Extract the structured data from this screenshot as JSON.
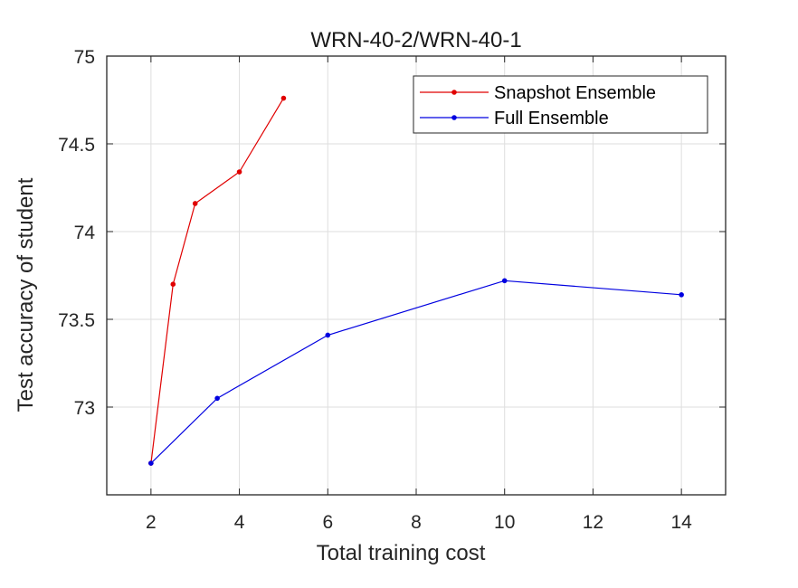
{
  "chart_data": {
    "type": "line",
    "title": "WRN-40-2/WRN-40-1",
    "xlabel": "Total training cost",
    "ylabel": "Test accuracy of student",
    "xlim": [
      1,
      15
    ],
    "ylim": [
      72.5,
      75
    ],
    "xticks": [
      2,
      4,
      6,
      8,
      10,
      12,
      14
    ],
    "yticks": [
      73,
      73.5,
      74,
      74.5,
      75
    ],
    "grid": true,
    "legend_position": "top-right",
    "series": [
      {
        "name": "Snapshot Ensemble",
        "color": "#e00000",
        "x": [
          2,
          2.5,
          3,
          4,
          5
        ],
        "y": [
          72.68,
          73.7,
          74.16,
          74.34,
          74.76
        ]
      },
      {
        "name": "Full Ensemble",
        "color": "#0000e0",
        "x": [
          2,
          3.5,
          6,
          10,
          14
        ],
        "y": [
          72.68,
          73.05,
          73.41,
          73.72,
          73.64
        ]
      }
    ]
  }
}
